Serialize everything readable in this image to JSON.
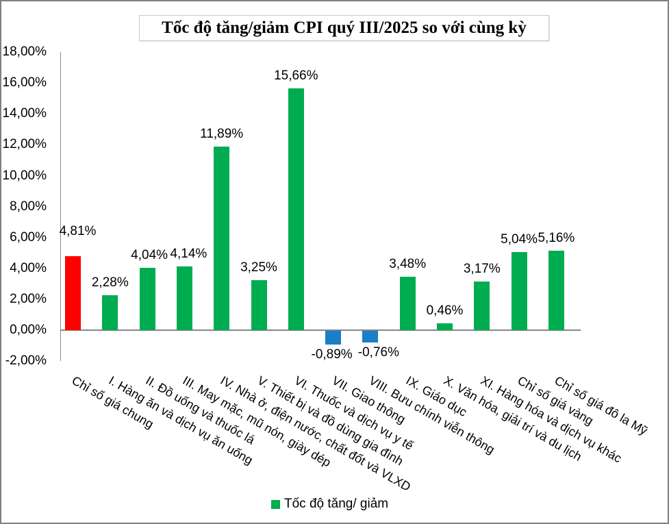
{
  "chart_data": {
    "type": "bar",
    "title": "Tốc độ tăng/giảm CPI quý III/2025 so với cùng kỳ",
    "legend": "Tốc độ tăng/ giảm",
    "legend_position": "bottom",
    "grid": false,
    "ylim": [
      -2,
      18
    ],
    "ytick_step": 2,
    "ytick_labels": [
      "18,00%",
      "16,00%",
      "14,00%",
      "12,00%",
      "10,00%",
      "8,00%",
      "6,00%",
      "4,00%",
      "2,00%",
      "0,00%",
      "-2,00%"
    ],
    "categories": [
      "Chỉ số giá chung",
      "I. Hàng ăn và dịch vụ ăn uống",
      "II. Đồ uống và thuốc lá",
      "III. May mặc, mũ nón, giày dép",
      "IV. Nhà ở, điện nước, chất đốt và VLXD",
      "V. Thiết bị và đồ dùng gia đình",
      "VI. Thuốc và dịch vụ y tế",
      "VII. Giao thông",
      "VIII. Bưu chính viễn thông",
      "IX. Giáo dục",
      "X. Văn hóa, giải trí và du lịch",
      "XI. Hàng hóa và dịch vụ khác",
      "Chỉ số giá vàng",
      "Chỉ số giá đô la Mỹ"
    ],
    "values": [
      4.81,
      2.28,
      4.04,
      4.14,
      11.89,
      3.25,
      15.66,
      -0.89,
      -0.76,
      3.48,
      0.46,
      3.17,
      5.04,
      5.16
    ],
    "value_labels": [
      "4,81%",
      "2,28%",
      "4,04%",
      "4,14%",
      "11,89%",
      "3,25%",
      "15,66%",
      "-0,89%",
      "-0,76%",
      "3,48%",
      "0,46%",
      "3,17%",
      "5,04%",
      "5,16%"
    ],
    "colors": {
      "positive": "#00AC50",
      "negative": "#1A7EC8",
      "highlight_first_bar": "#FF0000",
      "axis": "#868686"
    }
  }
}
